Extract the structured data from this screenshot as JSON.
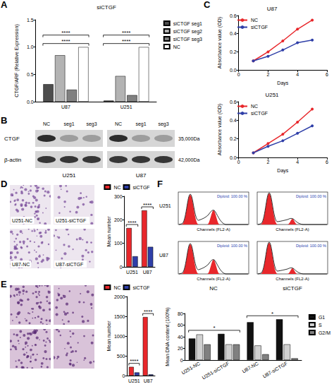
{
  "panel_letters": [
    "A",
    "B",
    "C",
    "D",
    "E",
    "F"
  ],
  "chart_data": [
    {
      "type": "bar",
      "title": "siCTGF",
      "categories": [
        "U87",
        "U251"
      ],
      "series": [
        {
          "name": "siCTGF seg1",
          "color": "#4d4d4d",
          "values": [
            0.32,
            0.02
          ]
        },
        {
          "name": "siCTGF seg2",
          "color": "#b3b3b3",
          "values": [
            0.85,
            0.47
          ]
        },
        {
          "name": "siCTGF seg3",
          "color": "#808080",
          "values": [
            0.22,
            0.12
          ]
        },
        {
          "name": "NC",
          "color": "#ffffff",
          "values": [
            1.0,
            1.0
          ]
        }
      ],
      "ylabel": "CTGF/ARF (Relative Expression)",
      "ylim": [
        0,
        1.5
      ],
      "yticks": [
        {
          "value": 0,
          "label": "0.0"
        },
        {
          "value": 0.5,
          "label": "0.5"
        },
        {
          "value": 1,
          "label": "1.0"
        },
        {
          "value": 1.5,
          "label": "1.5"
        }
      ],
      "grid": false,
      "legend": "right",
      "annotations": [
        {
          "text": "****",
          "categories": [
            "U87"
          ]
        },
        {
          "text": "****",
          "categories": [
            "U87"
          ]
        },
        {
          "text": "****",
          "categories": [
            "U251"
          ]
        },
        {
          "text": "****",
          "categories": [
            "U251"
          ]
        }
      ]
    },
    {
      "type": "line",
      "title": "U87",
      "x": [
        1,
        2,
        3,
        4,
        5
      ],
      "series": [
        {
          "name": "NC",
          "color": "#e8272b",
          "marker": "circle",
          "values": [
            0.1,
            0.2,
            0.32,
            0.45,
            0.55
          ]
        },
        {
          "name": "siCTGF",
          "color": "#2f3fa8",
          "marker": "circle",
          "values": [
            0.1,
            0.15,
            0.22,
            0.3,
            0.33
          ]
        }
      ],
      "xlabel": "Days",
      "ylabel": "Absorbance value (OD)",
      "xlim": [
        0,
        6
      ],
      "xticks": [
        0,
        2,
        4,
        6
      ],
      "ylim": [
        0,
        0.6
      ],
      "yticks": [
        {
          "value": 0,
          "label": "0.0"
        },
        {
          "value": 0.2,
          "label": "0.2"
        },
        {
          "value": 0.4,
          "label": "0.4"
        },
        {
          "value": 0.6,
          "label": "0.6"
        }
      ],
      "grid": false,
      "legend": "top-left"
    },
    {
      "type": "line",
      "title": "U251",
      "x": [
        1,
        2,
        3,
        4,
        5
      ],
      "series": [
        {
          "name": "NC",
          "color": "#e8272b",
          "marker": "circle",
          "values": [
            0.05,
            0.15,
            0.25,
            0.38,
            0.52
          ]
        },
        {
          "name": "siCTGF",
          "color": "#2f3fa8",
          "marker": "circle",
          "values": [
            0.05,
            0.12,
            0.18,
            0.26,
            0.34
          ]
        }
      ],
      "xlabel": "Days",
      "ylabel": "Absorbance value (OD)",
      "xlim": [
        0,
        6
      ],
      "xticks": [
        0,
        2,
        4,
        6
      ],
      "ylim": [
        0,
        0.6
      ],
      "yticks": [
        {
          "value": 0,
          "label": "0.0"
        },
        {
          "value": 0.2,
          "label": "0.2"
        },
        {
          "value": 0.4,
          "label": "0.4"
        },
        {
          "value": 0.6,
          "label": "0.6"
        }
      ],
      "grid": false,
      "legend": "top-left"
    },
    {
      "type": "bar",
      "categories": [
        "U251",
        "U87"
      ],
      "series": [
        {
          "name": "NC",
          "color": "#e8272b",
          "values": [
            165,
            240
          ]
        },
        {
          "name": "siCTGF",
          "color": "#2f3fa8",
          "values": [
            45,
            85
          ]
        }
      ],
      "ylabel": "Mean number",
      "ylim": [
        0,
        300
      ],
      "yticks": [
        0,
        100,
        200,
        300
      ],
      "grid": false,
      "legend": "top",
      "annotations": [
        {
          "text": "****",
          "categories": [
            "U251"
          ]
        },
        {
          "text": "****",
          "categories": [
            "U87"
          ]
        }
      ]
    },
    {
      "type": "bar",
      "categories": [
        "U251",
        "U87"
      ],
      "series": [
        {
          "name": "NC",
          "color": "#e8272b",
          "values": [
            220,
            1480
          ]
        },
        {
          "name": "siCTGF",
          "color": "#2f3fa8",
          "values": [
            80,
            30
          ]
        }
      ],
      "ylabel": "Mean number",
      "ylim": [
        0,
        2000
      ],
      "yticks": [
        0,
        500,
        1000,
        1500,
        2000
      ],
      "grid": false,
      "legend": "top",
      "annotations": [
        {
          "text": "****",
          "categories": [
            "U251"
          ]
        },
        {
          "text": "****",
          "categories": [
            "U87"
          ]
        }
      ]
    },
    {
      "type": "bar",
      "categories": [
        "U251-NC",
        "U251-siCTGF",
        "U87-NC",
        "U87-siCTGF"
      ],
      "series": [
        {
          "name": "G1",
          "color": "#111111",
          "values": [
            37,
            45,
            65,
            70
          ]
        },
        {
          "name": "S",
          "color": "#d0d0d0",
          "values": [
            44,
            27,
            25,
            27
          ]
        },
        {
          "name": "G2/M",
          "color": "#808080",
          "values": [
            27,
            27,
            10,
            3
          ]
        }
      ],
      "ylabel": "Mean DNA content (100%)",
      "ylim": [
        0,
        80
      ],
      "yticks": [
        0,
        20,
        40,
        60,
        80
      ],
      "grid": false,
      "legend": "right",
      "annotations": [
        {
          "text": "*",
          "categories": [
            "U251-NC",
            "U251-siCTGF"
          ]
        },
        {
          "text": "*",
          "categories": [
            "U87-NC",
            "U87-siCTGF"
          ]
        }
      ]
    }
  ],
  "blot": {
    "cell_lines": [
      "U251",
      "U87"
    ],
    "lanes": [
      "NC",
      "seg1",
      "seg3"
    ],
    "rows": [
      "CTGF",
      "β-actin"
    ],
    "sizes": [
      "35,000Da",
      "42,000Da"
    ]
  },
  "image_labels": [
    "U251-NC",
    "U251-siCTGF",
    "U87-NC",
    "U87-siCTGF"
  ],
  "flow": {
    "rows": [
      "U251",
      "U87"
    ],
    "columns": [
      "NC",
      "siCTGF"
    ],
    "x_label": "Channels (FL2-A)",
    "note": "Diploid: 100.00 %"
  }
}
